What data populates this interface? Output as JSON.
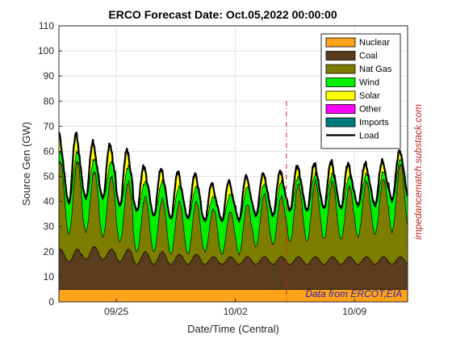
{
  "chart_data": {
    "type": "area",
    "title": "ERCO Forecast Date: Oct.05,2022 00:00:00",
    "xlabel": "Date/Time (Central)",
    "ylabel": "Source Gen (GW)",
    "ylim": [
      0,
      110
    ],
    "yticks": [
      0,
      10,
      20,
      30,
      40,
      50,
      60,
      70,
      80,
      90,
      100,
      110
    ],
    "xlim": [
      "2022-09-21T15:00",
      "2022-10-12T03:00"
    ],
    "xticks": [
      {
        "date": "2022-09-25",
        "label": "09/25"
      },
      {
        "date": "2022-10-02",
        "label": "10/02"
      },
      {
        "date": "2022-10-09",
        "label": "10/09"
      }
    ],
    "grid": true,
    "legend_position": "top-right",
    "forecast_marker": {
      "date": "2022-10-05T00:00",
      "ymax": 80,
      "color": "#c0221e"
    },
    "legend": [
      {
        "name": "Nuclear",
        "color": "#ffa31a",
        "kind": "patch"
      },
      {
        "name": "Coal",
        "color": "#5a3c1e",
        "kind": "patch"
      },
      {
        "name": "Nat Gas",
        "color": "#7d7d00",
        "kind": "patch"
      },
      {
        "name": "Wind",
        "color": "#00f000",
        "kind": "patch"
      },
      {
        "name": "Solar",
        "color": "#ffff00",
        "kind": "patch"
      },
      {
        "name": "Other",
        "color": "#ff00ff",
        "kind": "patch"
      },
      {
        "name": "Imports",
        "color": "#007b7b",
        "kind": "patch"
      },
      {
        "name": "Load",
        "color": "#000000",
        "kind": "line"
      }
    ],
    "daily": {
      "dates": [
        "2022-09-22",
        "2022-09-23",
        "2022-09-24",
        "2022-09-25",
        "2022-09-26",
        "2022-09-27",
        "2022-09-28",
        "2022-09-29",
        "2022-09-30",
        "2022-10-01",
        "2022-10-02",
        "2022-10-03",
        "2022-10-04",
        "2022-10-05",
        "2022-10-06",
        "2022-10-07",
        "2022-10-08",
        "2022-10-09",
        "2022-10-10",
        "2022-10-11"
      ],
      "load_peak": [
        70,
        70,
        68,
        68,
        63,
        59,
        58,
        56,
        52,
        52,
        54,
        55,
        56,
        58,
        58,
        59,
        58,
        59,
        59,
        62
      ],
      "load_min": [
        40,
        42,
        42,
        39,
        37,
        35,
        34,
        34,
        33,
        33,
        33,
        34,
        35,
        36,
        36,
        37,
        37,
        38,
        38,
        40
      ],
      "nuclear": [
        5,
        5,
        5,
        5,
        5,
        5,
        5,
        5,
        5,
        5,
        5,
        5,
        5,
        5,
        5,
        5,
        5,
        5,
        5,
        5
      ],
      "coal_peak": [
        16,
        17,
        16,
        16,
        15,
        15,
        14,
        14,
        13,
        13,
        13,
        13,
        13,
        13,
        13,
        13,
        13,
        13,
        13,
        13
      ],
      "coal_min": [
        11,
        12,
        12,
        11,
        10,
        10,
        10,
        10,
        10,
        10,
        10,
        10,
        10,
        10,
        10,
        10,
        10,
        10,
        10,
        10
      ],
      "gas_peak": [
        56,
        52,
        50,
        48,
        42,
        41,
        40,
        40,
        37,
        36,
        39,
        43,
        42,
        47,
        48,
        48,
        46,
        48,
        49,
        55
      ],
      "gas_min": [
        27,
        28,
        26,
        24,
        20,
        20,
        19,
        19,
        20,
        19,
        19,
        22,
        23,
        24,
        24,
        25,
        25,
        26,
        27,
        28
      ],
      "wind_peak": [
        4,
        5,
        6,
        6,
        6,
        7,
        6,
        6,
        5,
        7,
        7,
        4,
        6,
        3,
        3,
        3,
        4,
        3,
        3,
        2
      ],
      "wind_min": [
        12,
        13,
        15,
        14,
        16,
        14,
        14,
        14,
        12,
        13,
        13,
        12,
        11,
        12,
        12,
        12,
        12,
        12,
        11,
        12
      ],
      "solar_peak": [
        9,
        8,
        8,
        8,
        7,
        6,
        7,
        6,
        6,
        6,
        5,
        5,
        5,
        5,
        5,
        6,
        6,
        5,
        5,
        4
      ]
    }
  },
  "source_note": "Data from ERCOT,EIA",
  "side_text": "impedancematch.substack.com"
}
